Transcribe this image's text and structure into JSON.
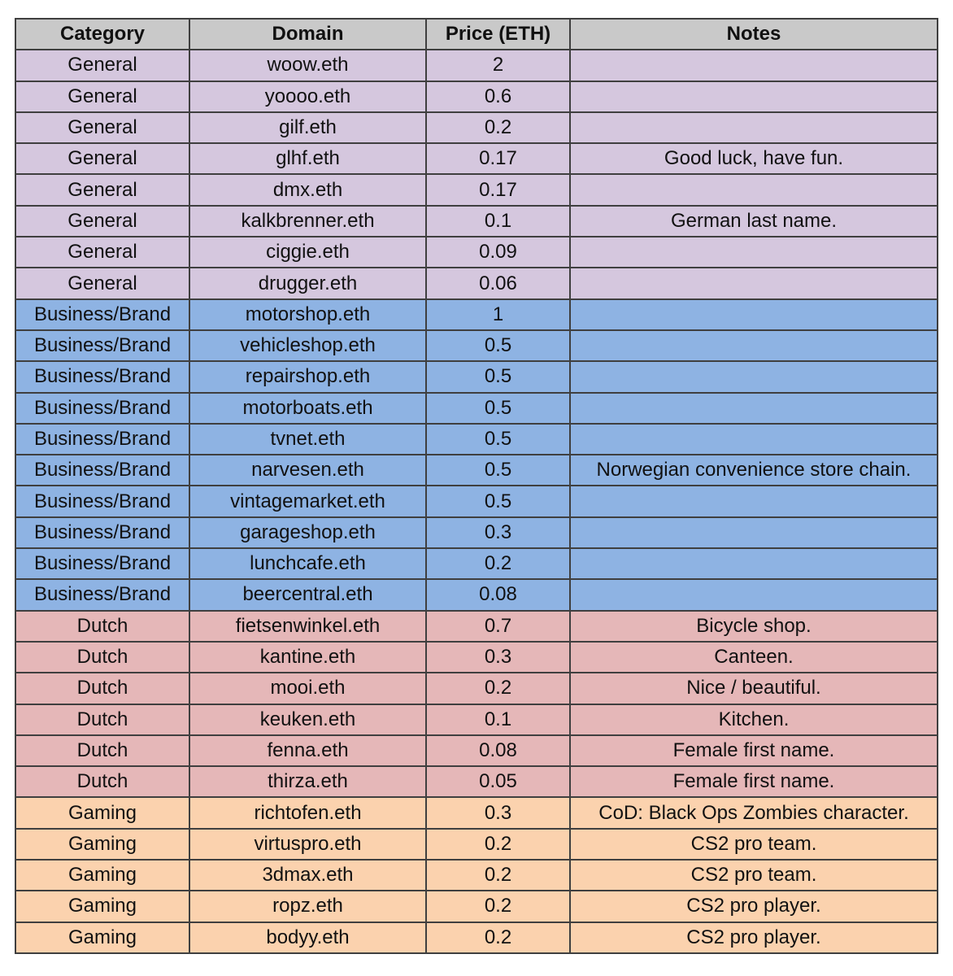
{
  "table": {
    "headers": [
      "Category",
      "Domain",
      "Price (ETH)",
      "Notes"
    ],
    "category_colors": {
      "General": "#d5c7de",
      "Business/Brand": "#8eb3e3",
      "Dutch": "#e5b7b8",
      "Gaming": "#fbd2ae"
    },
    "rows": [
      {
        "category": "General",
        "domain": "woow.eth",
        "price": "2",
        "notes": ""
      },
      {
        "category": "General",
        "domain": "yoooo.eth",
        "price": "0.6",
        "notes": ""
      },
      {
        "category": "General",
        "domain": "gilf.eth",
        "price": "0.2",
        "notes": ""
      },
      {
        "category": "General",
        "domain": "glhf.eth",
        "price": "0.17",
        "notes": "Good luck, have fun."
      },
      {
        "category": "General",
        "domain": "dmx.eth",
        "price": "0.17",
        "notes": ""
      },
      {
        "category": "General",
        "domain": "kalkbrenner.eth",
        "price": "0.1",
        "notes": "German last name."
      },
      {
        "category": "General",
        "domain": "ciggie.eth",
        "price": "0.09",
        "notes": ""
      },
      {
        "category": "General",
        "domain": "drugger.eth",
        "price": "0.06",
        "notes": ""
      },
      {
        "category": "Business/Brand",
        "domain": "motorshop.eth",
        "price": "1",
        "notes": ""
      },
      {
        "category": "Business/Brand",
        "domain": "vehicleshop.eth",
        "price": "0.5",
        "notes": ""
      },
      {
        "category": "Business/Brand",
        "domain": "repairshop.eth",
        "price": "0.5",
        "notes": ""
      },
      {
        "category": "Business/Brand",
        "domain": "motorboats.eth",
        "price": "0.5",
        "notes": ""
      },
      {
        "category": "Business/Brand",
        "domain": "tvnet.eth",
        "price": "0.5",
        "notes": ""
      },
      {
        "category": "Business/Brand",
        "domain": "narvesen.eth",
        "price": "0.5",
        "notes": "Norwegian convenience store chain."
      },
      {
        "category": "Business/Brand",
        "domain": "vintagemarket.eth",
        "price": "0.5",
        "notes": ""
      },
      {
        "category": "Business/Brand",
        "domain": "garageshop.eth",
        "price": "0.3",
        "notes": ""
      },
      {
        "category": "Business/Brand",
        "domain": "lunchcafe.eth",
        "price": "0.2",
        "notes": ""
      },
      {
        "category": "Business/Brand",
        "domain": "beercentral.eth",
        "price": "0.08",
        "notes": ""
      },
      {
        "category": "Dutch",
        "domain": "fietsenwinkel.eth",
        "price": "0.7",
        "notes": "Bicycle shop."
      },
      {
        "category": "Dutch",
        "domain": "kantine.eth",
        "price": "0.3",
        "notes": "Canteen."
      },
      {
        "category": "Dutch",
        "domain": "mooi.eth",
        "price": "0.2",
        "notes": "Nice / beautiful."
      },
      {
        "category": "Dutch",
        "domain": "keuken.eth",
        "price": "0.1",
        "notes": "Kitchen."
      },
      {
        "category": "Dutch",
        "domain": "fenna.eth",
        "price": "0.08",
        "notes": "Female first name."
      },
      {
        "category": "Dutch",
        "domain": "thirza.eth",
        "price": "0.05",
        "notes": "Female first name."
      },
      {
        "category": "Gaming",
        "domain": "richtofen.eth",
        "price": "0.3",
        "notes": "CoD: Black Ops Zombies character."
      },
      {
        "category": "Gaming",
        "domain": "virtuspro.eth",
        "price": "0.2",
        "notes": "CS2 pro team."
      },
      {
        "category": "Gaming",
        "domain": "3dmax.eth",
        "price": "0.2",
        "notes": "CS2 pro team."
      },
      {
        "category": "Gaming",
        "domain": "ropz.eth",
        "price": "0.2",
        "notes": "CS2 pro player."
      },
      {
        "category": "Gaming",
        "domain": "bodyy.eth",
        "price": "0.2",
        "notes": "CS2 pro player."
      }
    ]
  }
}
